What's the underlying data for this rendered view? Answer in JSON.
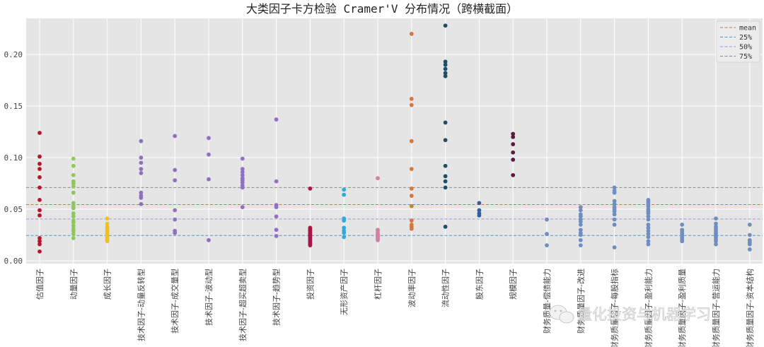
{
  "chart_data": {
    "type": "scatter",
    "title": "大类因子卡方检验 Cramer'V 分布情况（跨横截面）",
    "xlabel": "",
    "ylabel": "",
    "ylim": [
      0,
      0.235
    ],
    "yticks": [
      "0.00",
      "0.05",
      "0.10",
      "0.15",
      "0.20"
    ],
    "grid": true,
    "legend_position": "top-right",
    "categories": [
      "估值因子",
      "动量因子",
      "成长因子",
      "技术因子-动量反转型",
      "技术因子-成交量型",
      "技术因子-波动型",
      "技术因子-超买超卖型",
      "技术因子-趋势型",
      "投资因子",
      "无形资产因子",
      "杠杆因子",
      "波动率因子",
      "流动性因子",
      "股东因子",
      "规模因子",
      "财务质量-偿债能力",
      "财务质量因子-改进",
      "财务质量因子-每股指标",
      "财务质量因子-盈利能力",
      "财务质量因子-盈利质量",
      "财务质量因子-营运能力",
      "财务质量因子-资本结构"
    ],
    "colors": [
      "#b5172c",
      "#8cc95a",
      "#f0c020",
      "#8e72c0",
      "#8e72c0",
      "#8e72c0",
      "#8e72c0",
      "#8e72c0",
      "#a3174a",
      "#35a8d8",
      "#d080a0",
      "#d8773a",
      "#1b4e6b",
      "#2e5fa0",
      "#5c1a40",
      "#6f8ebd",
      "#6f8ebd",
      "#6f8ebd",
      "#6f8ebd",
      "#6f8ebd",
      "#6f8ebd",
      "#6f8ebd"
    ],
    "values": [
      [
        0.124,
        0.101,
        0.094,
        0.089,
        0.081,
        0.071,
        0.059,
        0.049,
        0.044,
        0.022,
        0.019,
        0.016,
        0.009
      ],
      [
        0.099,
        0.092,
        0.083,
        0.077,
        0.075,
        0.072,
        0.066,
        0.056,
        0.053,
        0.051,
        0.046,
        0.043,
        0.039,
        0.037,
        0.034,
        0.031,
        0.029,
        0.026,
        0.022
      ],
      [
        0.041,
        0.036,
        0.033,
        0.031,
        0.03,
        0.029,
        0.028,
        0.027,
        0.026,
        0.025,
        0.024,
        0.023,
        0.022,
        0.021,
        0.02,
        0.019
      ],
      [
        0.116,
        0.1,
        0.095,
        0.089,
        0.085,
        0.066,
        0.063,
        0.061,
        0.055
      ],
      [
        0.121,
        0.088,
        0.078,
        0.049,
        0.04,
        0.029,
        0.027
      ],
      [
        0.119,
        0.103,
        0.079,
        0.02
      ],
      [
        0.099,
        0.089,
        0.086,
        0.083,
        0.08,
        0.078,
        0.076,
        0.073,
        0.071,
        0.052
      ],
      [
        0.137,
        0.077,
        0.054,
        0.052,
        0.043,
        0.03,
        0.024
      ],
      [
        0.07,
        0.032,
        0.031,
        0.03,
        0.029,
        0.028,
        0.027,
        0.026,
        0.025,
        0.024,
        0.023,
        0.022,
        0.021,
        0.02,
        0.019,
        0.018,
        0.017,
        0.016,
        0.015
      ],
      [
        0.069,
        0.064,
        0.041,
        0.039,
        0.032,
        0.029,
        0.027,
        0.023
      ],
      [
        0.08,
        0.03,
        0.028,
        0.026,
        0.025,
        0.024,
        0.023,
        0.022,
        0.021,
        0.02
      ],
      [
        0.22,
        0.157,
        0.151,
        0.116,
        0.089,
        0.07,
        0.063,
        0.053,
        0.039,
        0.035,
        0.033,
        0.031
      ],
      [
        0.228,
        0.193,
        0.19,
        0.186,
        0.182,
        0.179,
        0.134,
        0.117,
        0.092,
        0.082,
        0.077,
        0.071,
        0.033
      ],
      [
        0.056,
        0.049,
        0.046,
        0.044
      ],
      [
        0.123,
        0.12,
        0.113,
        0.105,
        0.098,
        0.083
      ],
      [
        0.04,
        0.026,
        0.015
      ],
      [
        0.052,
        0.049,
        0.045,
        0.043,
        0.04,
        0.038,
        0.035,
        0.03,
        0.027,
        0.025,
        0.02,
        0.015
      ],
      [
        0.071,
        0.068,
        0.066,
        0.058,
        0.055,
        0.052,
        0.05,
        0.048,
        0.045,
        0.04,
        0.035,
        0.013
      ],
      [
        0.059,
        0.057,
        0.055,
        0.053,
        0.05,
        0.048,
        0.046,
        0.043,
        0.04,
        0.035,
        0.032,
        0.029,
        0.026,
        0.023,
        0.019,
        0.016
      ],
      [
        0.035,
        0.03,
        0.028,
        0.026,
        0.024,
        0.022,
        0.02,
        0.019
      ],
      [
        0.041,
        0.036,
        0.033,
        0.031,
        0.029,
        0.027,
        0.025,
        0.023,
        0.021,
        0.019,
        0.016
      ],
      [
        0.035,
        0.025,
        0.02,
        0.018,
        0.016,
        0.011
      ]
    ],
    "reference_lines": [
      {
        "name": "mean",
        "value": 0.0545,
        "color": "#e8693a"
      },
      {
        "name": "25%",
        "value": 0.0245,
        "color": "#4f97c4"
      },
      {
        "name": "50%",
        "value": 0.0405,
        "color": "#9f96e0"
      },
      {
        "name": "75%",
        "value": 0.071,
        "color": "#8a8a8a"
      }
    ]
  },
  "watermark": {
    "text": "量化投资与机器学习",
    "icon": "wechat-icon"
  }
}
